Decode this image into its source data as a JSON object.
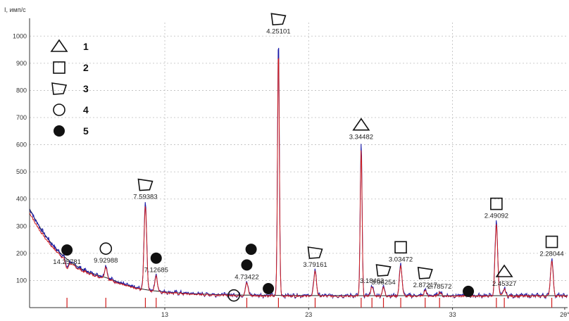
{
  "chart_data": {
    "type": "line",
    "ylabel": "I, имп/с",
    "xlabel": "2θ°",
    "xlim": [
      3.6,
      41.0
    ],
    "ylim": [
      0,
      1050
    ],
    "x_ticks": [
      "13",
      "23",
      "33",
      "2θ°"
    ],
    "x_tick_values": [
      13,
      23,
      33,
      40.8
    ],
    "y_ticks": [
      100,
      200,
      300,
      400,
      500,
      600,
      700,
      800,
      900,
      1000
    ],
    "grid": true,
    "colors": {
      "pattern_blue": "#1a1aa8",
      "fit_red": "#d01c1c",
      "background": "#222222",
      "grid": "#bdbdbd"
    },
    "legend": {
      "placement": "top-left",
      "entries": [
        {
          "marker": "triangle",
          "label": "1"
        },
        {
          "marker": "square",
          "label": "2"
        },
        {
          "marker": "pentagon",
          "label": "3"
        },
        {
          "marker": "open-circle",
          "label": "4"
        },
        {
          "marker": "filled-circle",
          "label": "5"
        }
      ]
    },
    "peaks": [
      {
        "x": 6.2,
        "y": 150,
        "label": "14.25781",
        "phase": 5
      },
      {
        "x": 8.9,
        "y": 155,
        "label": "9.92988",
        "phase": 4
      },
      {
        "x": 11.65,
        "y": 390,
        "label": "7.59383",
        "phase": 3
      },
      {
        "x": 12.4,
        "y": 120,
        "label": "7.12685",
        "phase": 5
      },
      {
        "x": 18.7,
        "y": 95,
        "label": "4.73422",
        "phase": 5
      },
      {
        "x": 20.9,
        "y": 1000,
        "label": "4.25101",
        "phase": 3
      },
      {
        "x": 23.45,
        "y": 140,
        "label": "3.79161",
        "phase": 3
      },
      {
        "x": 26.65,
        "y": 610,
        "label": "3.34482",
        "phase": 1
      },
      {
        "x": 27.4,
        "y": 80,
        "label": "3.18463",
        "phase": null
      },
      {
        "x": 28.2,
        "y": 75,
        "label": "3.06254",
        "phase": 3
      },
      {
        "x": 29.4,
        "y": 160,
        "label": "3.03472",
        "phase": 2
      },
      {
        "x": 31.1,
        "y": 65,
        "label": "2.87217",
        "phase": 3
      },
      {
        "x": 32.1,
        "y": 60,
        "label": "2.78572",
        "phase": null
      },
      {
        "x": 36.05,
        "y": 320,
        "label": "2.49092",
        "phase": 2
      },
      {
        "x": 36.6,
        "y": 70,
        "label": "2.45327",
        "phase": 1
      },
      {
        "x": 39.9,
        "y": 180,
        "label": "2.28044",
        "phase": 2
      }
    ],
    "standalone_markers": [
      {
        "x": 19.0,
        "y": 215,
        "phase": 5
      },
      {
        "x": 17.8,
        "y": 45,
        "phase": 4
      },
      {
        "x": 20.2,
        "y": 70,
        "phase": 5
      },
      {
        "x": 34.1,
        "y": 60,
        "phase": 5
      }
    ]
  }
}
